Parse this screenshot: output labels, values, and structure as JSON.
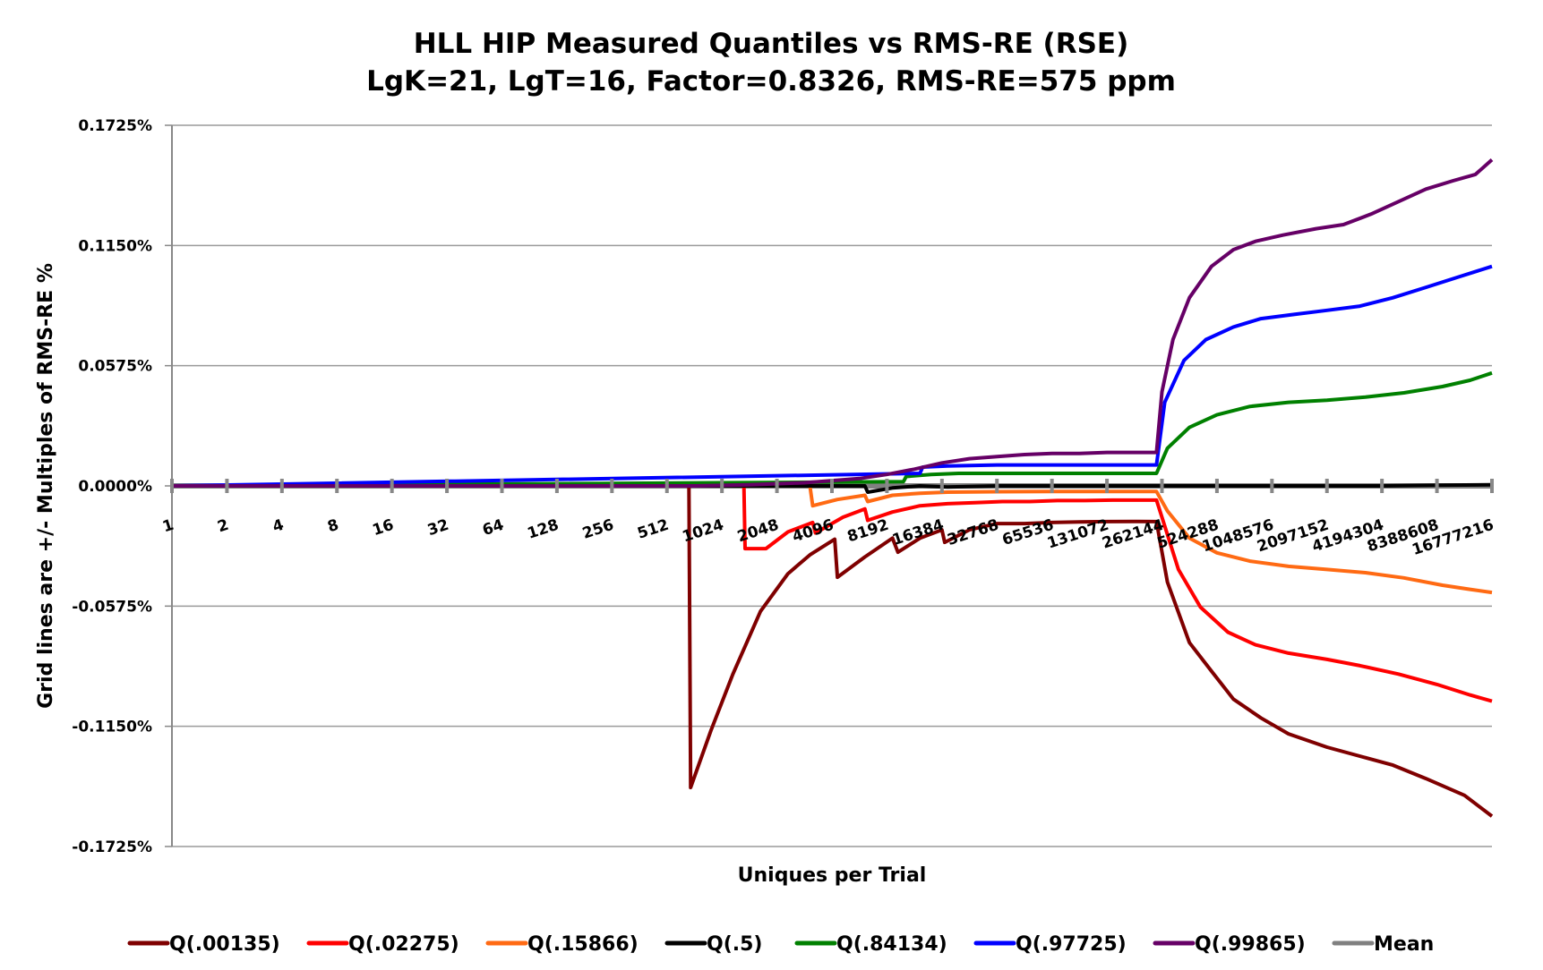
{
  "chart_data": {
    "type": "line",
    "title": "HLL HIP Measured Quantiles vs RMS-RE (RSE)",
    "subtitle": "LgK=21, LgT=16, Factor=0.8326, RMS-RE=575 ppm",
    "xlabel": "Uniques per Trial",
    "ylabel": "Grid lines are +/-  Multiples of RMS-RE %",
    "x_scale": "log2 (category ticks at powers of two)",
    "categories": [
      "1",
      "2",
      "4",
      "8",
      "16",
      "32",
      "64",
      "128",
      "256",
      "512",
      "1024",
      "2048",
      "4096",
      "8192",
      "16384",
      "32768",
      "65536",
      "131072",
      "262144",
      "524288",
      "1048576",
      "2097152",
      "4194304",
      "8388608",
      "16777216"
    ],
    "ylim": [
      -0.1725,
      0.1725
    ],
    "yticks": [
      "0.1725%",
      "0.1150%",
      "0.0575%",
      "0.0000%",
      "-0.0575%",
      "-0.1150%",
      "-0.1725%"
    ],
    "ytick_values": [
      0.1725,
      0.115,
      0.0575,
      0,
      -0.0575,
      -0.115,
      -0.1725
    ],
    "y_units": "percent",
    "grid": "horizontal",
    "legend_position": "bottom",
    "series": [
      {
        "name": "Q(.00135)",
        "color": "#7f0000",
        "points_log2x_y": [
          [
            0,
            0
          ],
          [
            9.4,
            0
          ],
          [
            9.43,
            -0.1443
          ],
          [
            9.8,
            -0.117
          ],
          [
            10.2,
            -0.09
          ],
          [
            10.7,
            -0.06
          ],
          [
            11.2,
            -0.042
          ],
          [
            11.6,
            -0.033
          ],
          [
            12.05,
            -0.0255
          ],
          [
            12.1,
            -0.0437
          ],
          [
            12.6,
            -0.034
          ],
          [
            13.1,
            -0.025
          ],
          [
            13.2,
            -0.0317
          ],
          [
            13.6,
            -0.025
          ],
          [
            14.0,
            -0.021
          ],
          [
            14.05,
            -0.027
          ],
          [
            14.5,
            -0.021
          ],
          [
            15.0,
            -0.018
          ],
          [
            15.5,
            -0.018
          ],
          [
            16.0,
            -0.0175
          ],
          [
            16.5,
            -0.0172
          ],
          [
            17.0,
            -0.0171
          ],
          [
            17.5,
            -0.017
          ],
          [
            17.9,
            -0.0171
          ],
          [
            18.1,
            -0.046
          ],
          [
            18.5,
            -0.075
          ],
          [
            18.9,
            -0.0886
          ],
          [
            19.3,
            -0.102
          ],
          [
            19.8,
            -0.111
          ],
          [
            20.3,
            -0.1186
          ],
          [
            21.0,
            -0.125
          ],
          [
            21.7,
            -0.13
          ],
          [
            22.2,
            -0.1336
          ],
          [
            22.8,
            -0.14
          ],
          [
            23.5,
            -0.148
          ],
          [
            24.0,
            -0.158
          ]
        ]
      },
      {
        "name": "Q(.02275)",
        "color": "#ff0000",
        "points_log2x_y": [
          [
            0,
            0
          ],
          [
            10.4,
            0
          ],
          [
            10.42,
            -0.03
          ],
          [
            10.8,
            -0.03
          ],
          [
            11.2,
            -0.022
          ],
          [
            11.65,
            -0.0175
          ],
          [
            11.7,
            -0.0225
          ],
          [
            12.2,
            -0.015
          ],
          [
            12.6,
            -0.011
          ],
          [
            12.65,
            -0.0165
          ],
          [
            13.1,
            -0.0125
          ],
          [
            13.6,
            -0.0095
          ],
          [
            14.1,
            -0.0085
          ],
          [
            14.6,
            -0.008
          ],
          [
            15.1,
            -0.0075
          ],
          [
            15.6,
            -0.0075
          ],
          [
            16.1,
            -0.007
          ],
          [
            16.6,
            -0.007
          ],
          [
            17.1,
            -0.0068
          ],
          [
            17.9,
            -0.0068
          ],
          [
            18.0,
            -0.015
          ],
          [
            18.3,
            -0.04
          ],
          [
            18.7,
            -0.058
          ],
          [
            19.2,
            -0.07
          ],
          [
            19.7,
            -0.076
          ],
          [
            20.3,
            -0.08
          ],
          [
            21.0,
            -0.083
          ],
          [
            21.6,
            -0.086
          ],
          [
            22.3,
            -0.09
          ],
          [
            23.0,
            -0.095
          ],
          [
            23.6,
            -0.1
          ],
          [
            24.0,
            -0.103
          ]
        ]
      },
      {
        "name": "Q(.15866)",
        "color": "#ff6a13",
        "points_log2x_y": [
          [
            0,
            0
          ],
          [
            11.6,
            0
          ],
          [
            11.65,
            -0.0095
          ],
          [
            12.1,
            -0.0065
          ],
          [
            12.6,
            -0.0045
          ],
          [
            12.65,
            -0.0075
          ],
          [
            13.1,
            -0.0045
          ],
          [
            13.6,
            -0.0035
          ],
          [
            14.1,
            -0.003
          ],
          [
            15.0,
            -0.0028
          ],
          [
            16.0,
            -0.0027
          ],
          [
            17.0,
            -0.0027
          ],
          [
            17.9,
            -0.0027
          ],
          [
            18.1,
            -0.012
          ],
          [
            18.5,
            -0.025
          ],
          [
            19.0,
            -0.032
          ],
          [
            19.6,
            -0.036
          ],
          [
            20.3,
            -0.0385
          ],
          [
            21.0,
            -0.04
          ],
          [
            21.7,
            -0.0415
          ],
          [
            22.4,
            -0.044
          ],
          [
            23.1,
            -0.0475
          ],
          [
            23.6,
            -0.0495
          ],
          [
            24.0,
            -0.051
          ]
        ]
      },
      {
        "name": "Q(.5)",
        "color": "#000000",
        "points_log2x_y": [
          [
            0,
            0
          ],
          [
            12.6,
            0
          ],
          [
            12.65,
            -0.003
          ],
          [
            13.1,
            -0.001
          ],
          [
            13.6,
            0
          ],
          [
            14.1,
            -0.0005
          ],
          [
            15.0,
            0
          ],
          [
            16.0,
            0
          ],
          [
            17.0,
            0
          ],
          [
            18.0,
            0
          ],
          [
            19.0,
            0
          ],
          [
            20.0,
            0
          ],
          [
            21.0,
            0
          ],
          [
            22.0,
            0
          ],
          [
            23.0,
            0.0003
          ],
          [
            24.0,
            0.0005
          ]
        ]
      },
      {
        "name": "Q(.84134)",
        "color": "#008000",
        "points_log2x_y": [
          [
            0,
            0
          ],
          [
            13.3,
            0.002
          ],
          [
            13.35,
            0.0045
          ],
          [
            13.8,
            0.0055
          ],
          [
            14.3,
            0.006
          ],
          [
            15.0,
            0.006
          ],
          [
            16.0,
            0.006
          ],
          [
            17.0,
            0.006
          ],
          [
            17.9,
            0.006
          ],
          [
            18.1,
            0.018
          ],
          [
            18.5,
            0.028
          ],
          [
            19.0,
            0.034
          ],
          [
            19.6,
            0.038
          ],
          [
            20.3,
            0.04
          ],
          [
            21.0,
            0.041
          ],
          [
            21.7,
            0.0425
          ],
          [
            22.4,
            0.0445
          ],
          [
            23.1,
            0.0475
          ],
          [
            23.6,
            0.0505
          ],
          [
            24.0,
            0.054
          ]
        ]
      },
      {
        "name": "Q(.97725)",
        "color": "#0000ff",
        "points_log2x_y": [
          [
            0,
            0
          ],
          [
            13.6,
            0.006
          ],
          [
            13.65,
            0.009
          ],
          [
            14.1,
            0.0095
          ],
          [
            15.0,
            0.01
          ],
          [
            16.0,
            0.01
          ],
          [
            17.0,
            0.01
          ],
          [
            17.9,
            0.01
          ],
          [
            18.05,
            0.04
          ],
          [
            18.4,
            0.06
          ],
          [
            18.8,
            0.07
          ],
          [
            19.3,
            0.076
          ],
          [
            19.8,
            0.08
          ],
          [
            20.4,
            0.082
          ],
          [
            21.0,
            0.084
          ],
          [
            21.6,
            0.086
          ],
          [
            22.2,
            0.09
          ],
          [
            22.8,
            0.095
          ],
          [
            23.4,
            0.1
          ],
          [
            24.0,
            0.105
          ]
        ]
      },
      {
        "name": "Q(.99865)",
        "color": "#660066",
        "points_log2x_y": [
          [
            0,
            0
          ],
          [
            9.5,
            0
          ],
          [
            10.5,
            0.0005
          ],
          [
            11.5,
            0.0015
          ],
          [
            12.5,
            0.0035
          ],
          [
            13.0,
            0.0055
          ],
          [
            13.5,
            0.008
          ],
          [
            14.0,
            0.011
          ],
          [
            14.5,
            0.013
          ],
          [
            15.0,
            0.014
          ],
          [
            15.5,
            0.015
          ],
          [
            16.0,
            0.0155
          ],
          [
            16.5,
            0.0155
          ],
          [
            17.0,
            0.016
          ],
          [
            17.9,
            0.016
          ],
          [
            18.0,
            0.045
          ],
          [
            18.2,
            0.07
          ],
          [
            18.5,
            0.09
          ],
          [
            18.9,
            0.105
          ],
          [
            19.3,
            0.113
          ],
          [
            19.7,
            0.117
          ],
          [
            20.2,
            0.12
          ],
          [
            20.8,
            0.123
          ],
          [
            21.3,
            0.125
          ],
          [
            21.8,
            0.13
          ],
          [
            22.3,
            0.136
          ],
          [
            22.8,
            0.142
          ],
          [
            23.3,
            0.146
          ],
          [
            23.7,
            0.149
          ],
          [
            24.0,
            0.156
          ]
        ]
      },
      {
        "name": "Mean",
        "color": "#808080",
        "points_log2x_y": [
          [
            0,
            0
          ],
          [
            24,
            0
          ]
        ]
      }
    ]
  }
}
